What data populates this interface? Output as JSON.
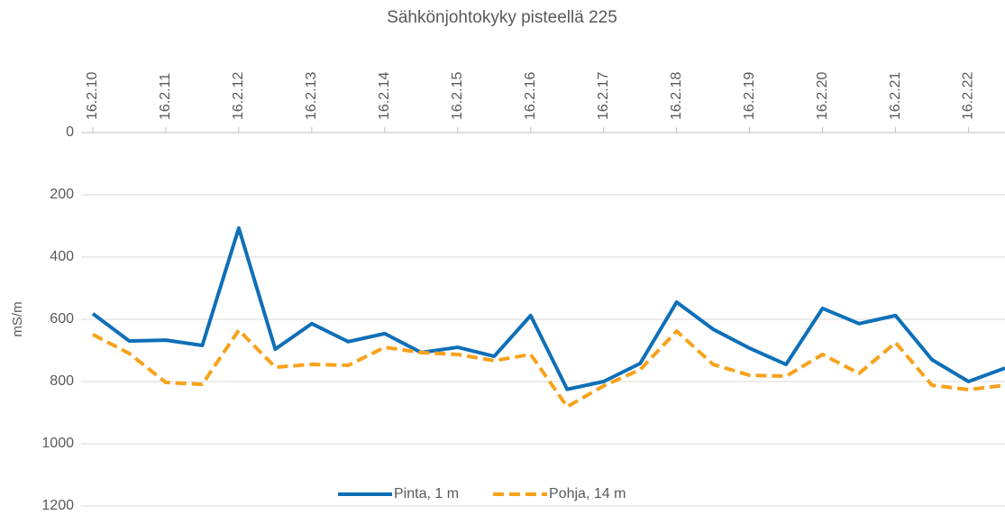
{
  "chart_data": {
    "type": "line",
    "title": "Sähkönjohtokyky pisteellä 225",
    "y_label": "mS/m",
    "categories": [
      "16.2.10",
      null,
      "16.2.11",
      null,
      "16.2.12",
      null,
      "16.2.13",
      null,
      "16.2.14",
      null,
      "16.2.15",
      null,
      "16.2.16",
      null,
      "16.2.17",
      null,
      "16.2.18",
      null,
      "16.2.19",
      null,
      "16.2.20",
      null,
      "16.2.21",
      null,
      "16.2.22",
      null
    ],
    "series": [
      {
        "name": "Pinta, 1 m",
        "color": "#0f6fb8",
        "dash": false,
        "values": [
          582,
          670,
          667,
          684,
          307,
          696,
          614,
          672,
          646,
          707,
          690,
          719,
          588,
          825,
          800,
          742,
          545,
          632,
          693,
          745,
          565,
          614,
          588,
          730,
          800,
          757
        ]
      },
      {
        "name": "Pohja, 14 m",
        "color": "#f7a21b",
        "dash": true,
        "values": [
          649,
          710,
          803,
          809,
          635,
          754,
          745,
          748,
          690,
          707,
          713,
          733,
          713,
          881,
          814,
          762,
          638,
          745,
          780,
          783,
          713,
          774,
          675,
          812,
          826,
          812
        ]
      }
    ],
    "ylim": [
      0,
      1200
    ],
    "yticks": [
      0,
      200,
      400,
      600,
      800,
      1000,
      1200
    ],
    "y_inverted": true,
    "x_axis_position": "top",
    "grid": true,
    "legend": "bottom"
  }
}
